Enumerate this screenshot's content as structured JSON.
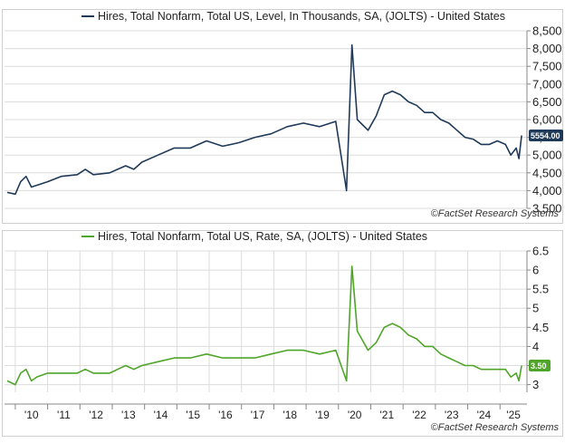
{
  "chart_data": [
    {
      "type": "line",
      "title": "Hires, Total Nonfarm, Total US, Level, In Thousands, SA, (JOLTS) - United States",
      "xlabel": "",
      "ylabel": "",
      "ylim": [
        3500,
        8500
      ],
      "y_ticks": [
        3500,
        4000,
        4500,
        5000,
        5500,
        6000,
        6500,
        7000,
        7500,
        8000,
        8500
      ],
      "y_tick_labels": [
        "3,500",
        "4,000",
        "4,500",
        "5,000",
        "5,500",
        "6,000",
        "6,500",
        "7,000",
        "7,500",
        "8,000",
        "8,500"
      ],
      "legend_position": "top-center",
      "last_value_label": "5554.00",
      "source_note": "©FactSet Research Systems",
      "color": "#1f3a58",
      "series": [
        {
          "name": "Hires, Total Nonfarm, Total US, Level, In Thousands, SA, (JOLTS) - United States",
          "values": [
            {
              "x": "2009-10",
              "y": 3950
            },
            {
              "x": "2010-01",
              "y": 3900
            },
            {
              "x": "2010-03",
              "y": 4250
            },
            {
              "x": "2010-05",
              "y": 4400
            },
            {
              "x": "2010-07",
              "y": 4100
            },
            {
              "x": "2010-09",
              "y": 4150
            },
            {
              "x": "2011-01",
              "y": 4250
            },
            {
              "x": "2011-06",
              "y": 4400
            },
            {
              "x": "2011-12",
              "y": 4450
            },
            {
              "x": "2012-03",
              "y": 4600
            },
            {
              "x": "2012-06",
              "y": 4450
            },
            {
              "x": "2012-12",
              "y": 4500
            },
            {
              "x": "2013-03",
              "y": 4600
            },
            {
              "x": "2013-06",
              "y": 4700
            },
            {
              "x": "2013-09",
              "y": 4600
            },
            {
              "x": "2013-12",
              "y": 4800
            },
            {
              "x": "2014-06",
              "y": 5000
            },
            {
              "x": "2014-12",
              "y": 5200
            },
            {
              "x": "2015-06",
              "y": 5200
            },
            {
              "x": "2015-12",
              "y": 5400
            },
            {
              "x": "2016-06",
              "y": 5250
            },
            {
              "x": "2016-12",
              "y": 5350
            },
            {
              "x": "2017-06",
              "y": 5500
            },
            {
              "x": "2017-12",
              "y": 5600
            },
            {
              "x": "2018-06",
              "y": 5800
            },
            {
              "x": "2018-12",
              "y": 5900
            },
            {
              "x": "2019-06",
              "y": 5800
            },
            {
              "x": "2019-12",
              "y": 5950
            },
            {
              "x": "2020-04",
              "y": 4000
            },
            {
              "x": "2020-06",
              "y": 8100
            },
            {
              "x": "2020-08",
              "y": 6000
            },
            {
              "x": "2020-12",
              "y": 5700
            },
            {
              "x": "2021-03",
              "y": 6100
            },
            {
              "x": "2021-06",
              "y": 6700
            },
            {
              "x": "2021-09",
              "y": 6800
            },
            {
              "x": "2021-12",
              "y": 6700
            },
            {
              "x": "2022-03",
              "y": 6500
            },
            {
              "x": "2022-06",
              "y": 6400
            },
            {
              "x": "2022-09",
              "y": 6200
            },
            {
              "x": "2022-12",
              "y": 6200
            },
            {
              "x": "2023-03",
              "y": 6000
            },
            {
              "x": "2023-06",
              "y": 5900
            },
            {
              "x": "2023-09",
              "y": 5700
            },
            {
              "x": "2023-12",
              "y": 5500
            },
            {
              "x": "2024-03",
              "y": 5450
            },
            {
              "x": "2024-06",
              "y": 5300
            },
            {
              "x": "2024-09",
              "y": 5300
            },
            {
              "x": "2024-12",
              "y": 5400
            },
            {
              "x": "2025-03",
              "y": 5300
            },
            {
              "x": "2025-05",
              "y": 5000
            },
            {
              "x": "2025-07",
              "y": 5200
            },
            {
              "x": "2025-08",
              "y": 4900
            },
            {
              "x": "2025-09",
              "y": 5554
            }
          ]
        }
      ]
    },
    {
      "type": "line",
      "title": "Hires, Total Nonfarm, Total US, Rate, SA, (JOLTS) - United States",
      "xlabel": "",
      "ylabel": "",
      "ylim": [
        2.8,
        6.5
      ],
      "y_ticks": [
        3,
        3.5,
        4,
        4.5,
        5,
        5.5,
        6,
        6.5
      ],
      "y_tick_labels": [
        "3",
        "3.5",
        "4",
        "4.5",
        "5",
        "5.5",
        "6",
        "6.5"
      ],
      "x_ticks": [
        "2010-01",
        "2011-01",
        "2012-01",
        "2013-01",
        "2014-01",
        "2015-01",
        "2016-01",
        "2017-01",
        "2018-01",
        "2019-01",
        "2020-01",
        "2021-01",
        "2022-01",
        "2023-01",
        "2024-01",
        "2025-01"
      ],
      "x_tick_labels": [
        "'10",
        "'11",
        "'12",
        "'13",
        "'14",
        "'15",
        "'16",
        "'17",
        "'18",
        "'19",
        "'20",
        "'21",
        "'22",
        "'23",
        "'24",
        "'25"
      ],
      "legend_position": "top-center",
      "last_value_label": "3.50",
      "source_note": "©FactSet Research Systems",
      "color": "#4fa52a",
      "series": [
        {
          "name": "Hires, Total Nonfarm, Total US, Rate, SA, (JOLTS) - United States",
          "values": [
            {
              "x": "2009-10",
              "y": 3.1
            },
            {
              "x": "2010-01",
              "y": 3.0
            },
            {
              "x": "2010-03",
              "y": 3.3
            },
            {
              "x": "2010-05",
              "y": 3.4
            },
            {
              "x": "2010-07",
              "y": 3.1
            },
            {
              "x": "2010-09",
              "y": 3.2
            },
            {
              "x": "2011-01",
              "y": 3.3
            },
            {
              "x": "2011-06",
              "y": 3.3
            },
            {
              "x": "2011-12",
              "y": 3.3
            },
            {
              "x": "2012-03",
              "y": 3.4
            },
            {
              "x": "2012-06",
              "y": 3.3
            },
            {
              "x": "2012-12",
              "y": 3.3
            },
            {
              "x": "2013-03",
              "y": 3.4
            },
            {
              "x": "2013-06",
              "y": 3.5
            },
            {
              "x": "2013-09",
              "y": 3.4
            },
            {
              "x": "2013-12",
              "y": 3.5
            },
            {
              "x": "2014-06",
              "y": 3.6
            },
            {
              "x": "2014-12",
              "y": 3.7
            },
            {
              "x": "2015-06",
              "y": 3.7
            },
            {
              "x": "2015-12",
              "y": 3.8
            },
            {
              "x": "2016-06",
              "y": 3.7
            },
            {
              "x": "2016-12",
              "y": 3.7
            },
            {
              "x": "2017-06",
              "y": 3.7
            },
            {
              "x": "2017-12",
              "y": 3.8
            },
            {
              "x": "2018-06",
              "y": 3.9
            },
            {
              "x": "2018-12",
              "y": 3.9
            },
            {
              "x": "2019-06",
              "y": 3.8
            },
            {
              "x": "2019-12",
              "y": 3.9
            },
            {
              "x": "2020-04",
              "y": 3.1
            },
            {
              "x": "2020-06",
              "y": 6.1
            },
            {
              "x": "2020-08",
              "y": 4.4
            },
            {
              "x": "2020-12",
              "y": 3.9
            },
            {
              "x": "2021-03",
              "y": 4.1
            },
            {
              "x": "2021-06",
              "y": 4.5
            },
            {
              "x": "2021-09",
              "y": 4.6
            },
            {
              "x": "2021-12",
              "y": 4.5
            },
            {
              "x": "2022-03",
              "y": 4.3
            },
            {
              "x": "2022-06",
              "y": 4.2
            },
            {
              "x": "2022-09",
              "y": 4.0
            },
            {
              "x": "2022-12",
              "y": 4.0
            },
            {
              "x": "2023-03",
              "y": 3.8
            },
            {
              "x": "2023-06",
              "y": 3.7
            },
            {
              "x": "2023-09",
              "y": 3.6
            },
            {
              "x": "2023-12",
              "y": 3.5
            },
            {
              "x": "2024-03",
              "y": 3.5
            },
            {
              "x": "2024-06",
              "y": 3.4
            },
            {
              "x": "2024-09",
              "y": 3.4
            },
            {
              "x": "2024-12",
              "y": 3.4
            },
            {
              "x": "2025-03",
              "y": 3.4
            },
            {
              "x": "2025-05",
              "y": 3.2
            },
            {
              "x": "2025-07",
              "y": 3.3
            },
            {
              "x": "2025-08",
              "y": 3.1
            },
            {
              "x": "2025-09",
              "y": 3.5
            }
          ]
        }
      ]
    }
  ]
}
